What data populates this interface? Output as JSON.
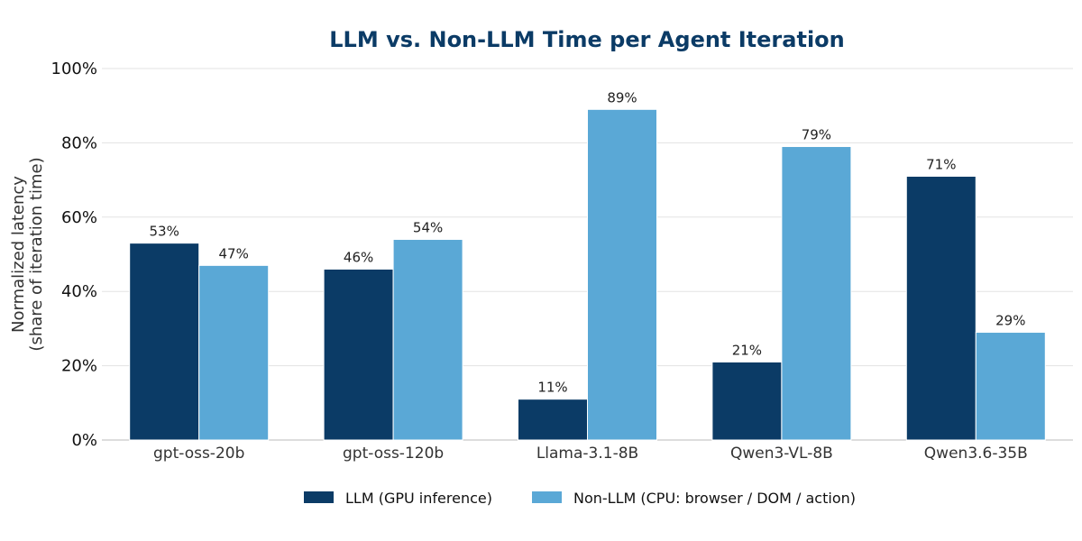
{
  "colors": {
    "title": "#0b3b66",
    "llm": "#0b3b66",
    "non_llm": "#5aa8d6",
    "grid": "#e3e3e3"
  },
  "chart_data": {
    "type": "bar",
    "title": "LLM vs. Non-LLM Time per Agent Iteration",
    "xlabel": "",
    "ylabel_lines": [
      "Normalized latency",
      "(share of iteration time)"
    ],
    "categories": [
      "gpt-oss-20b",
      "gpt-oss-120b",
      "Llama-3.1-8B",
      "Qwen3-VL-8B",
      "Qwen3.6-35B"
    ],
    "series": [
      {
        "name": "LLM (GPU inference)",
        "values": [
          53,
          46,
          11,
          21,
          71
        ],
        "labels": [
          "53%",
          "46%",
          "11%",
          "21%",
          "71%"
        ],
        "color_key": "llm"
      },
      {
        "name": "Non-LLM (CPU: browser / DOM / action)",
        "values": [
          47,
          54,
          89,
          79,
          29
        ],
        "labels": [
          "47%",
          "54%",
          "89%",
          "79%",
          "29%"
        ],
        "color_key": "non_llm"
      }
    ],
    "ylim": [
      0,
      100
    ],
    "yticks": [
      0,
      20,
      40,
      60,
      80,
      100
    ],
    "ytick_labels": [
      "0%",
      "20%",
      "40%",
      "60%",
      "80%",
      "100%"
    ],
    "grid": true,
    "legend_position": "bottom-center"
  }
}
